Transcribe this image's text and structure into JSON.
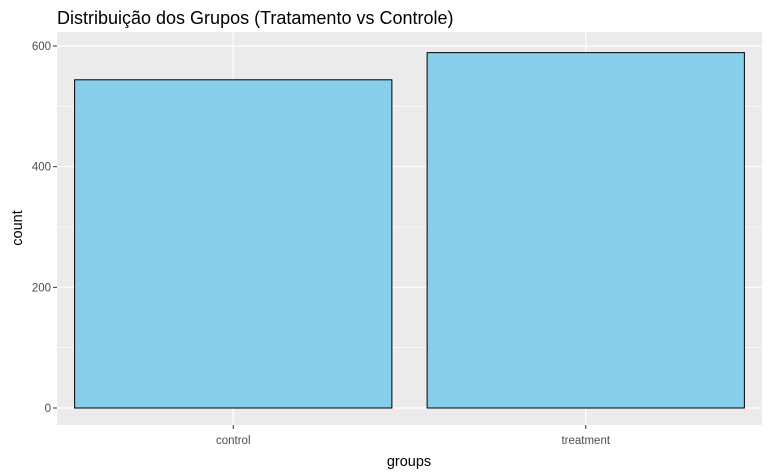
{
  "chart_data": {
    "type": "bar",
    "title": "Distribuição dos Grupos (Tratamento vs Controle)",
    "xlabel": "groups",
    "ylabel": "count",
    "categories": [
      "control",
      "treatment"
    ],
    "values": [
      544,
      589
    ],
    "ylim": [
      0,
      620
    ],
    "yticks": [
      0,
      200,
      400,
      600
    ],
    "ytick_labels": [
      "0",
      "200",
      "400",
      "600"
    ],
    "grid": true,
    "legend": "none",
    "colors": {
      "bar_fill": "#87CEEB",
      "bar_stroke": "#000000",
      "panel_background": "#EBEBEB",
      "grid_major": "#FFFFFF",
      "tick_text": "#4D4D4D"
    }
  }
}
